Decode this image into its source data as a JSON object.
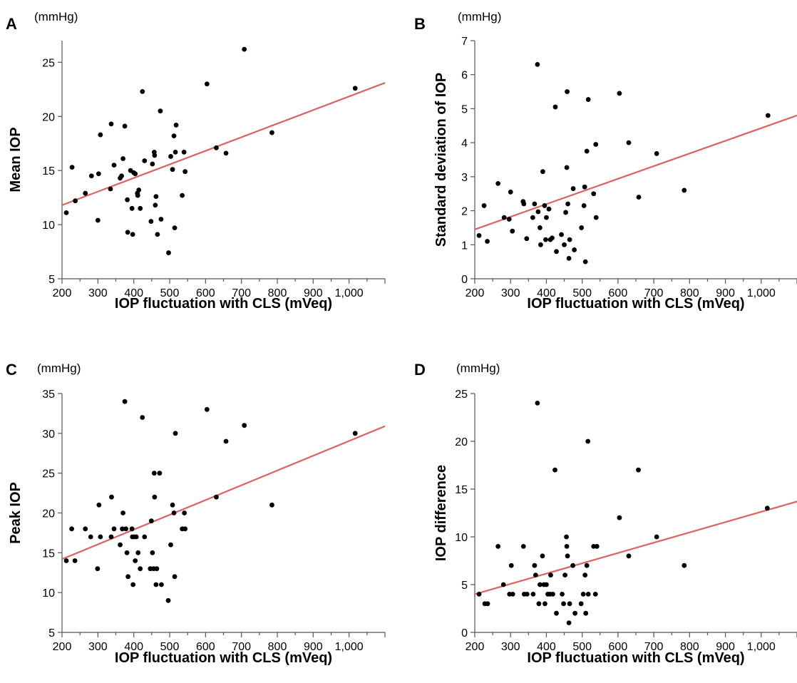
{
  "chart_data": [
    {
      "panel": "A",
      "type": "scatter",
      "unit_label": "(mmHg)",
      "xlabel": "IOP fluctuation with CLS (mVeq)",
      "ylabel": "Mean IOP",
      "xlim": [
        200,
        1100
      ],
      "ylim": [
        5,
        27
      ],
      "xticks": [
        200,
        300,
        400,
        500,
        600,
        700,
        800,
        900,
        1000
      ],
      "xtick_labels": [
        "200",
        "300",
        "400",
        "500",
        "600",
        "700",
        "800",
        "900",
        "1,000"
      ],
      "yticks": [
        5,
        10,
        15,
        20,
        25
      ],
      "ytick_labels": [
        "5",
        "10",
        "15",
        "20",
        "25"
      ],
      "fit_line": {
        "x": [
          200,
          1100
        ],
        "y": [
          11.8,
          23.1
        ]
      },
      "points": [
        [
          212,
          11.1
        ],
        [
          228,
          15.3
        ],
        [
          237,
          12.2
        ],
        [
          265,
          12.9
        ],
        [
          282,
          14.5
        ],
        [
          300,
          10.4
        ],
        [
          302,
          14.7
        ],
        [
          307,
          18.3
        ],
        [
          335,
          13.3
        ],
        [
          337,
          19.3
        ],
        [
          345,
          15.5
        ],
        [
          362,
          14.3
        ],
        [
          366,
          14.5
        ],
        [
          370,
          16.1
        ],
        [
          375,
          19.1
        ],
        [
          382,
          12.3
        ],
        [
          383,
          9.3
        ],
        [
          391,
          15.0
        ],
        [
          395,
          11.5
        ],
        [
          397,
          9.1
        ],
        [
          400,
          14.8
        ],
        [
          404,
          14.7
        ],
        [
          410,
          12.9
        ],
        [
          411,
          12.7
        ],
        [
          414,
          13.2
        ],
        [
          418,
          11.5
        ],
        [
          424,
          22.3
        ],
        [
          430,
          15.9
        ],
        [
          448,
          10.3
        ],
        [
          452,
          15.6
        ],
        [
          457,
          16.7
        ],
        [
          458,
          16.4
        ],
        [
          460,
          11.8
        ],
        [
          462,
          12.6
        ],
        [
          466,
          9.1
        ],
        [
          474,
          20.5
        ],
        [
          476,
          10.5
        ],
        [
          497,
          7.4
        ],
        [
          503,
          16.3
        ],
        [
          508,
          15.1
        ],
        [
          512,
          18.2
        ],
        [
          514,
          9.7
        ],
        [
          516,
          16.7
        ],
        [
          518,
          19.2
        ],
        [
          535,
          12.7
        ],
        [
          540,
          16.7
        ],
        [
          543,
          14.9
        ],
        [
          604,
          23.0
        ],
        [
          630,
          17.1
        ],
        [
          657,
          16.6
        ],
        [
          708,
          26.2
        ],
        [
          785,
          18.5
        ],
        [
          1017,
          22.6
        ]
      ]
    },
    {
      "panel": "B",
      "type": "scatter",
      "unit_label": "(mmHg)",
      "xlabel": "IOP fluctuation with CLS (mVeq)",
      "ylabel": "Standard deviation of IOP",
      "xlim": [
        200,
        1100
      ],
      "ylim": [
        0,
        7
      ],
      "xticks": [
        200,
        300,
        400,
        500,
        600,
        700,
        800,
        900,
        1000
      ],
      "xtick_labels": [
        "200",
        "300",
        "400",
        "500",
        "600",
        "700",
        "800",
        "900",
        "1,000"
      ],
      "yticks": [
        0,
        1,
        2,
        3,
        4,
        5,
        6,
        7
      ],
      "ytick_labels": [
        "0",
        "1",
        "2",
        "3",
        "4",
        "5",
        "6",
        "7"
      ],
      "fit_line": {
        "x": [
          200,
          1100
        ],
        "y": [
          1.45,
          4.8
        ]
      },
      "points": [
        [
          212,
          1.27
        ],
        [
          226,
          2.15
        ],
        [
          235,
          1.1
        ],
        [
          265,
          2.8
        ],
        [
          282,
          1.8
        ],
        [
          296,
          1.75
        ],
        [
          300,
          2.55
        ],
        [
          305,
          1.4
        ],
        [
          335,
          2.27
        ],
        [
          337,
          2.2
        ],
        [
          345,
          1.18
        ],
        [
          362,
          1.8
        ],
        [
          367,
          2.2
        ],
        [
          375,
          6.3
        ],
        [
          377,
          1.97
        ],
        [
          382,
          1.5
        ],
        [
          384,
          1.0
        ],
        [
          390,
          3.15
        ],
        [
          395,
          2.15
        ],
        [
          398,
          1.15
        ],
        [
          400,
          1.8
        ],
        [
          407,
          2.05
        ],
        [
          411,
          1.15
        ],
        [
          416,
          1.2
        ],
        [
          425,
          5.05
        ],
        [
          428,
          0.8
        ],
        [
          442,
          1.3
        ],
        [
          450,
          1.0
        ],
        [
          454,
          1.95
        ],
        [
          457,
          3.27
        ],
        [
          458,
          5.5
        ],
        [
          460,
          2.2
        ],
        [
          463,
          0.6
        ],
        [
          465,
          1.15
        ],
        [
          475,
          2.65
        ],
        [
          478,
          0.85
        ],
        [
          498,
          1.5
        ],
        [
          505,
          2.15
        ],
        [
          507,
          2.7
        ],
        [
          509,
          0.5
        ],
        [
          513,
          3.75
        ],
        [
          517,
          5.27
        ],
        [
          532,
          2.5
        ],
        [
          538,
          3.95
        ],
        [
          539,
          1.8
        ],
        [
          604,
          5.45
        ],
        [
          630,
          4.0
        ],
        [
          658,
          2.4
        ],
        [
          708,
          3.68
        ],
        [
          785,
          2.6
        ],
        [
          1019,
          4.8
        ]
      ]
    },
    {
      "panel": "C",
      "type": "scatter",
      "unit_label": "(mmHg)",
      "xlabel": "IOP fluctuation with CLS (mVeq)",
      "ylabel": "Peak IOP",
      "xlim": [
        200,
        1100
      ],
      "ylim": [
        5,
        35
      ],
      "xticks": [
        200,
        300,
        400,
        500,
        600,
        700,
        800,
        900,
        1000
      ],
      "xtick_labels": [
        "200",
        "300",
        "400",
        "500",
        "600",
        "700",
        "800",
        "900",
        "1,000"
      ],
      "yticks": [
        5,
        10,
        15,
        20,
        25,
        30,
        35
      ],
      "ytick_labels": [
        "5",
        "10",
        "15",
        "20",
        "25",
        "30",
        "35"
      ],
      "fit_line": {
        "x": [
          200,
          1100
        ],
        "y": [
          14.2,
          30.9
        ]
      },
      "points": [
        [
          212,
          14
        ],
        [
          227,
          18
        ],
        [
          236,
          14
        ],
        [
          265,
          18
        ],
        [
          280,
          17
        ],
        [
          299,
          13
        ],
        [
          303,
          21
        ],
        [
          307,
          17
        ],
        [
          337,
          17
        ],
        [
          338,
          22
        ],
        [
          345,
          18
        ],
        [
          362,
          16
        ],
        [
          368,
          18
        ],
        [
          370,
          20
        ],
        [
          375,
          34
        ],
        [
          378,
          18
        ],
        [
          381,
          15
        ],
        [
          384,
          12
        ],
        [
          395,
          18
        ],
        [
          396,
          17
        ],
        [
          398,
          11
        ],
        [
          401,
          17
        ],
        [
          404,
          14
        ],
        [
          407,
          17
        ],
        [
          412,
          15
        ],
        [
          418,
          13
        ],
        [
          424,
          32
        ],
        [
          430,
          17
        ],
        [
          446,
          13
        ],
        [
          449,
          19
        ],
        [
          452,
          15
        ],
        [
          455,
          13
        ],
        [
          457,
          25
        ],
        [
          458,
          22
        ],
        [
          462,
          11
        ],
        [
          464,
          13
        ],
        [
          472,
          25
        ],
        [
          477,
          11
        ],
        [
          496,
          9
        ],
        [
          503,
          16
        ],
        [
          508,
          21
        ],
        [
          512,
          20
        ],
        [
          514,
          12
        ],
        [
          516,
          30
        ],
        [
          535,
          18
        ],
        [
          541,
          20
        ],
        [
          543,
          18
        ],
        [
          604,
          33
        ],
        [
          630,
          22
        ],
        [
          657,
          29
        ],
        [
          708,
          31
        ],
        [
          785,
          21
        ],
        [
          1017,
          30
        ]
      ]
    },
    {
      "panel": "D",
      "type": "scatter",
      "unit_label": "(mmHg)",
      "xlabel": "IOP fluctuation with CLS (mVeq)",
      "ylabel": "IOP difference",
      "xlim": [
        200,
        1100
      ],
      "ylim": [
        0,
        25
      ],
      "xticks": [
        200,
        300,
        400,
        500,
        600,
        700,
        800,
        900,
        1000
      ],
      "xtick_labels": [
        "200",
        "300",
        "400",
        "500",
        "600",
        "700",
        "800",
        "900",
        "1,000"
      ],
      "yticks": [
        0,
        5,
        10,
        15,
        20,
        25
      ],
      "ytick_labels": [
        "0",
        "5",
        "10",
        "15",
        "20",
        "25"
      ],
      "fit_line": {
        "x": [
          200,
          1100
        ],
        "y": [
          4.0,
          13.7
        ]
      },
      "points": [
        [
          212,
          4
        ],
        [
          228,
          3
        ],
        [
          236,
          3
        ],
        [
          265,
          9
        ],
        [
          280,
          5
        ],
        [
          297,
          4
        ],
        [
          302,
          7
        ],
        [
          306,
          4
        ],
        [
          336,
          9
        ],
        [
          338,
          4
        ],
        [
          346,
          4
        ],
        [
          363,
          4
        ],
        [
          367,
          7
        ],
        [
          370,
          6
        ],
        [
          375,
          24
        ],
        [
          379,
          3
        ],
        [
          382,
          5
        ],
        [
          389,
          8
        ],
        [
          393,
          5
        ],
        [
          396,
          3
        ],
        [
          400,
          5
        ],
        [
          404,
          4
        ],
        [
          410,
          4
        ],
        [
          412,
          6
        ],
        [
          418,
          4
        ],
        [
          424,
          17
        ],
        [
          428,
          2
        ],
        [
          444,
          4
        ],
        [
          448,
          3
        ],
        [
          452,
          6
        ],
        [
          456,
          10
        ],
        [
          457,
          9
        ],
        [
          459,
          8
        ],
        [
          463,
          1
        ],
        [
          465,
          3
        ],
        [
          474,
          7
        ],
        [
          480,
          2
        ],
        [
          497,
          3
        ],
        [
          503,
          4
        ],
        [
          508,
          6
        ],
        [
          510,
          2
        ],
        [
          513,
          7
        ],
        [
          516,
          20
        ],
        [
          517,
          4
        ],
        [
          532,
          9
        ],
        [
          537,
          4
        ],
        [
          541,
          9
        ],
        [
          604,
          12
        ],
        [
          630,
          8
        ],
        [
          657,
          17
        ],
        [
          708,
          10
        ],
        [
          785,
          7
        ],
        [
          1017,
          13
        ]
      ]
    }
  ]
}
